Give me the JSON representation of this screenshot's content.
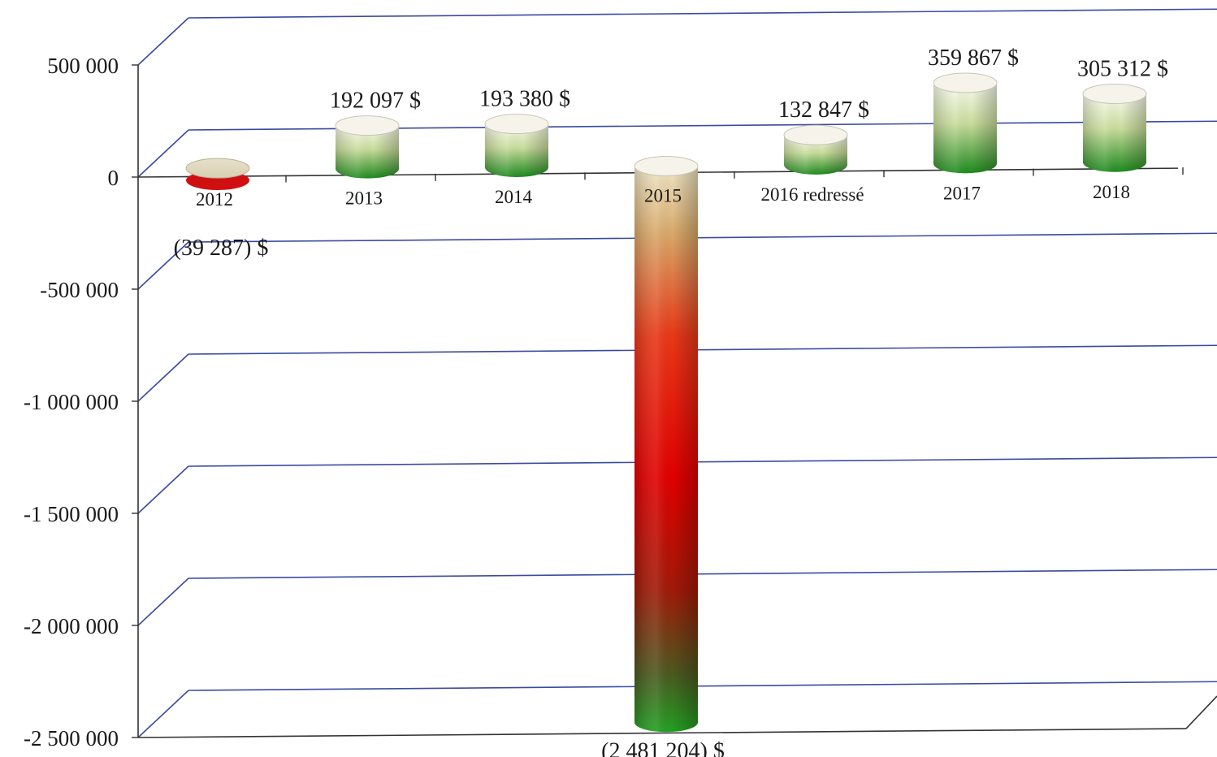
{
  "chart_data": {
    "type": "bar",
    "style": "3d-cylinder",
    "categories": [
      "2012",
      "2013",
      "2014",
      "2015",
      "2016 redressé",
      "2017",
      "2018"
    ],
    "values": [
      -39287,
      192097,
      193380,
      -2481204,
      132847,
      359867,
      305312
    ],
    "data_labels": [
      "(39 287) $",
      "192 097  $",
      "193 380  $",
      "(2 481 204) $",
      "132 847  $",
      "359 867  $",
      "305 312  $"
    ],
    "y_ticks": [
      "500 000",
      "0",
      "-500 000",
      "-1 000 000",
      "-1 500 000",
      "-2 000 000",
      "-2 500 000"
    ],
    "ylim": [
      -2500000,
      500000
    ],
    "grid": true,
    "title": "",
    "xlabel": "",
    "ylabel": "",
    "colors": {
      "positive_dark": "#1e8a1e",
      "positive_light": "#f4f8e4",
      "negative_red": "#e00000",
      "gridline": "#3b4aa0"
    }
  }
}
